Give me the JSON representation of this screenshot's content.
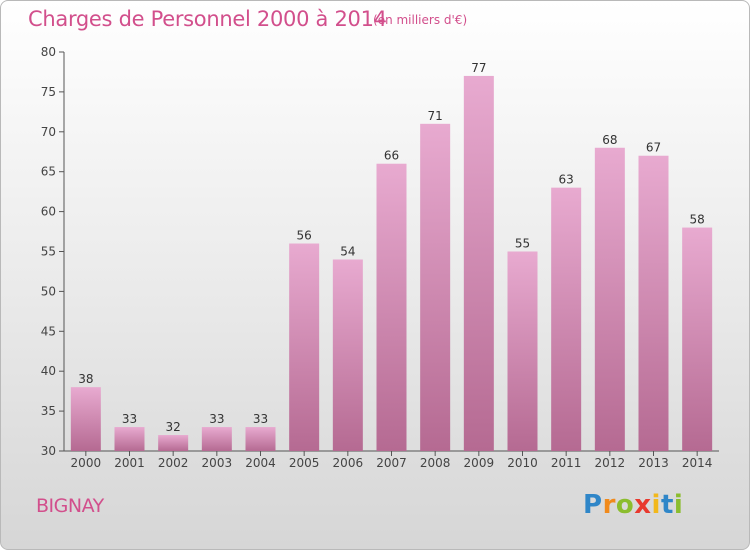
{
  "chart_data": {
    "type": "bar",
    "title": "Charges de Personnel 2000 à 2014",
    "subtitle": "(en milliers d'€)",
    "categories": [
      "2000",
      "2001",
      "2002",
      "2003",
      "2004",
      "2005",
      "2006",
      "2007",
      "2008",
      "2009",
      "2010",
      "2011",
      "2012",
      "2013",
      "2014"
    ],
    "values": [
      38,
      33,
      32,
      33,
      33,
      56,
      54,
      66,
      71,
      77,
      55,
      63,
      68,
      67,
      58
    ],
    "ylim": [
      30,
      80
    ],
    "yticks": [
      30,
      35,
      40,
      45,
      50,
      55,
      60,
      65,
      70,
      75,
      80
    ],
    "grid": false,
    "colors": {
      "bar_top": "#e8aad0",
      "bar_bottom": "#b56a92",
      "text": "#d24f8c"
    }
  },
  "footer": {
    "commune": "BIGNAY",
    "logo": {
      "letters": [
        "P",
        "r",
        "o",
        "x",
        "i",
        "t",
        "i"
      ],
      "colors": [
        "#2f86c8",
        "#f08a1c",
        "#8bbd2e",
        "#e8392e",
        "#f2b81b",
        "#2f86c8",
        "#8bbd2e"
      ]
    }
  }
}
